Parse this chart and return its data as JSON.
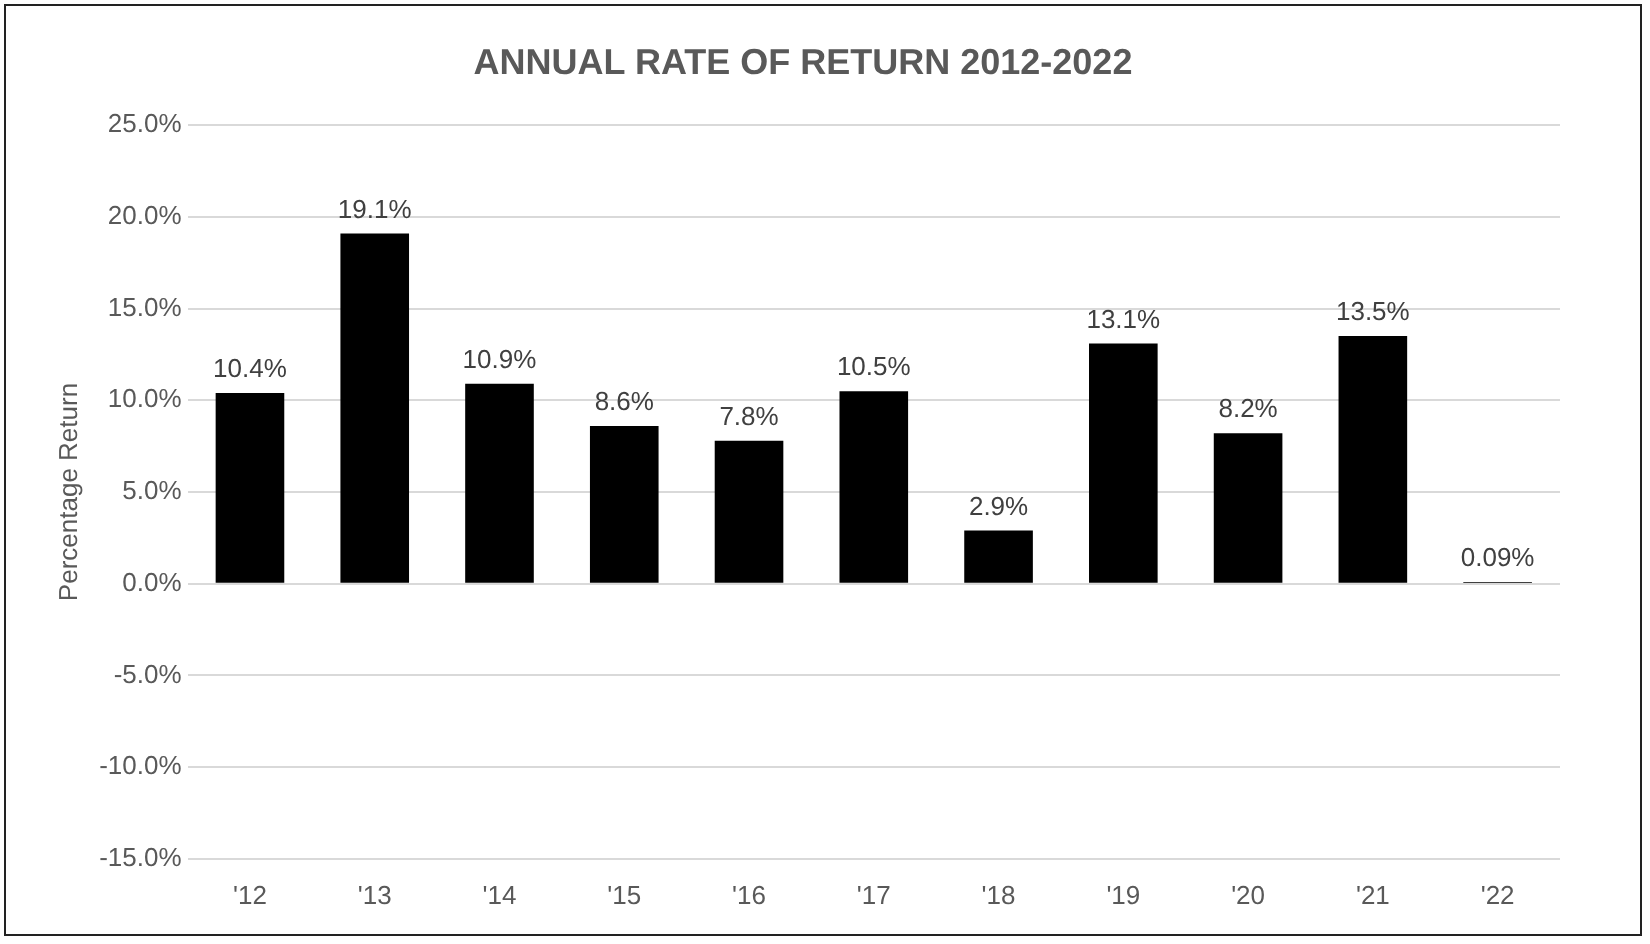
{
  "chart_data": {
    "type": "bar",
    "title": "ANNUAL RATE OF RETURN 2012-2022",
    "ylabel": "Percentage Return",
    "categories": [
      "'12",
      "'13",
      "'14",
      "'15",
      "'16",
      "'17",
      "'18",
      "'19",
      "'20",
      "'21",
      "'22"
    ],
    "values": [
      10.4,
      19.1,
      10.9,
      8.6,
      7.8,
      10.5,
      2.9,
      13.1,
      8.2,
      13.5,
      0.09
    ],
    "value_labels": [
      "10.4%",
      "19.1%",
      "10.9%",
      "8.6%",
      "7.8%",
      "10.5%",
      "2.9%",
      "13.1%",
      "8.2%",
      "13.5%",
      "0.09%"
    ],
    "color": "#000000",
    "ylim": [
      -15,
      25
    ],
    "yticks": [
      {
        "value": -15,
        "label": "-15.0%"
      },
      {
        "value": -10,
        "label": "-10.0%"
      },
      {
        "value": -5,
        "label": "-5.0%"
      },
      {
        "value": 0,
        "label": "0.0%"
      },
      {
        "value": 5,
        "label": "5.0%"
      },
      {
        "value": 10,
        "label": "10.0%"
      },
      {
        "value": 15,
        "label": "15.0%"
      },
      {
        "value": 20,
        "label": "20.0%"
      },
      {
        "value": 25,
        "label": "25.0%"
      }
    ],
    "grid": "y",
    "legend": false
  }
}
